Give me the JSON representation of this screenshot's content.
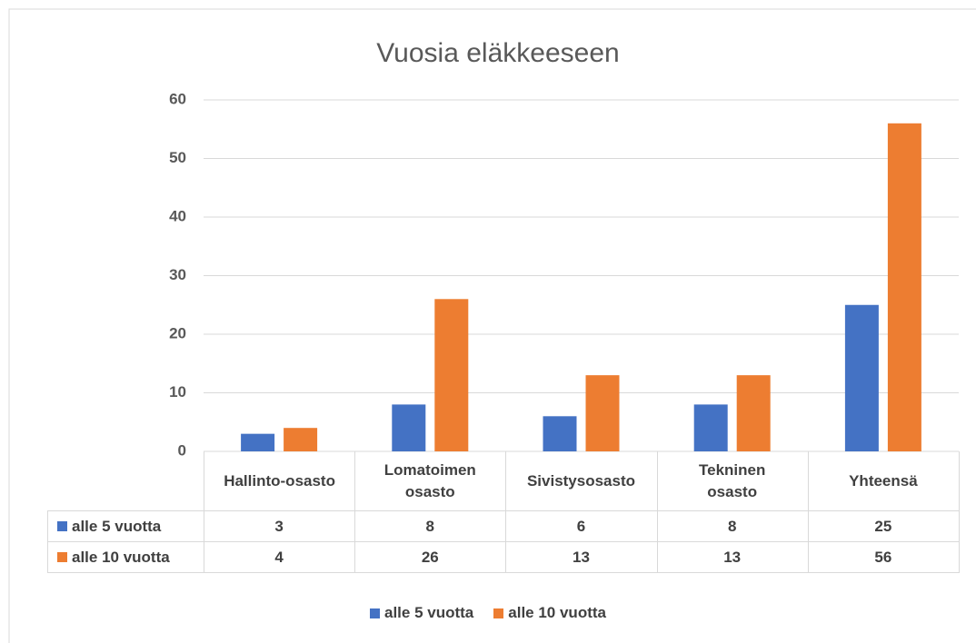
{
  "chart_data": {
    "type": "bar",
    "title": "Vuosia eläkkeeseen",
    "categories": [
      "Hallinto-osasto",
      "Lomatoimen\nosasto",
      "Sivistysosasto",
      "Tekninen\nosasto",
      "Yhteensä"
    ],
    "series": [
      {
        "name": "alle 5 vuotta",
        "color": "#4472c4",
        "values": [
          3,
          8,
          6,
          8,
          25
        ]
      },
      {
        "name": "alle 10 vuotta",
        "color": "#ed7d31",
        "values": [
          4,
          26,
          13,
          13,
          56
        ]
      }
    ],
    "ylim": [
      0,
      60
    ],
    "yticks": [
      0,
      10,
      20,
      30,
      40,
      50,
      60
    ],
    "grid": true,
    "data_table": true,
    "legend": "bottom"
  }
}
